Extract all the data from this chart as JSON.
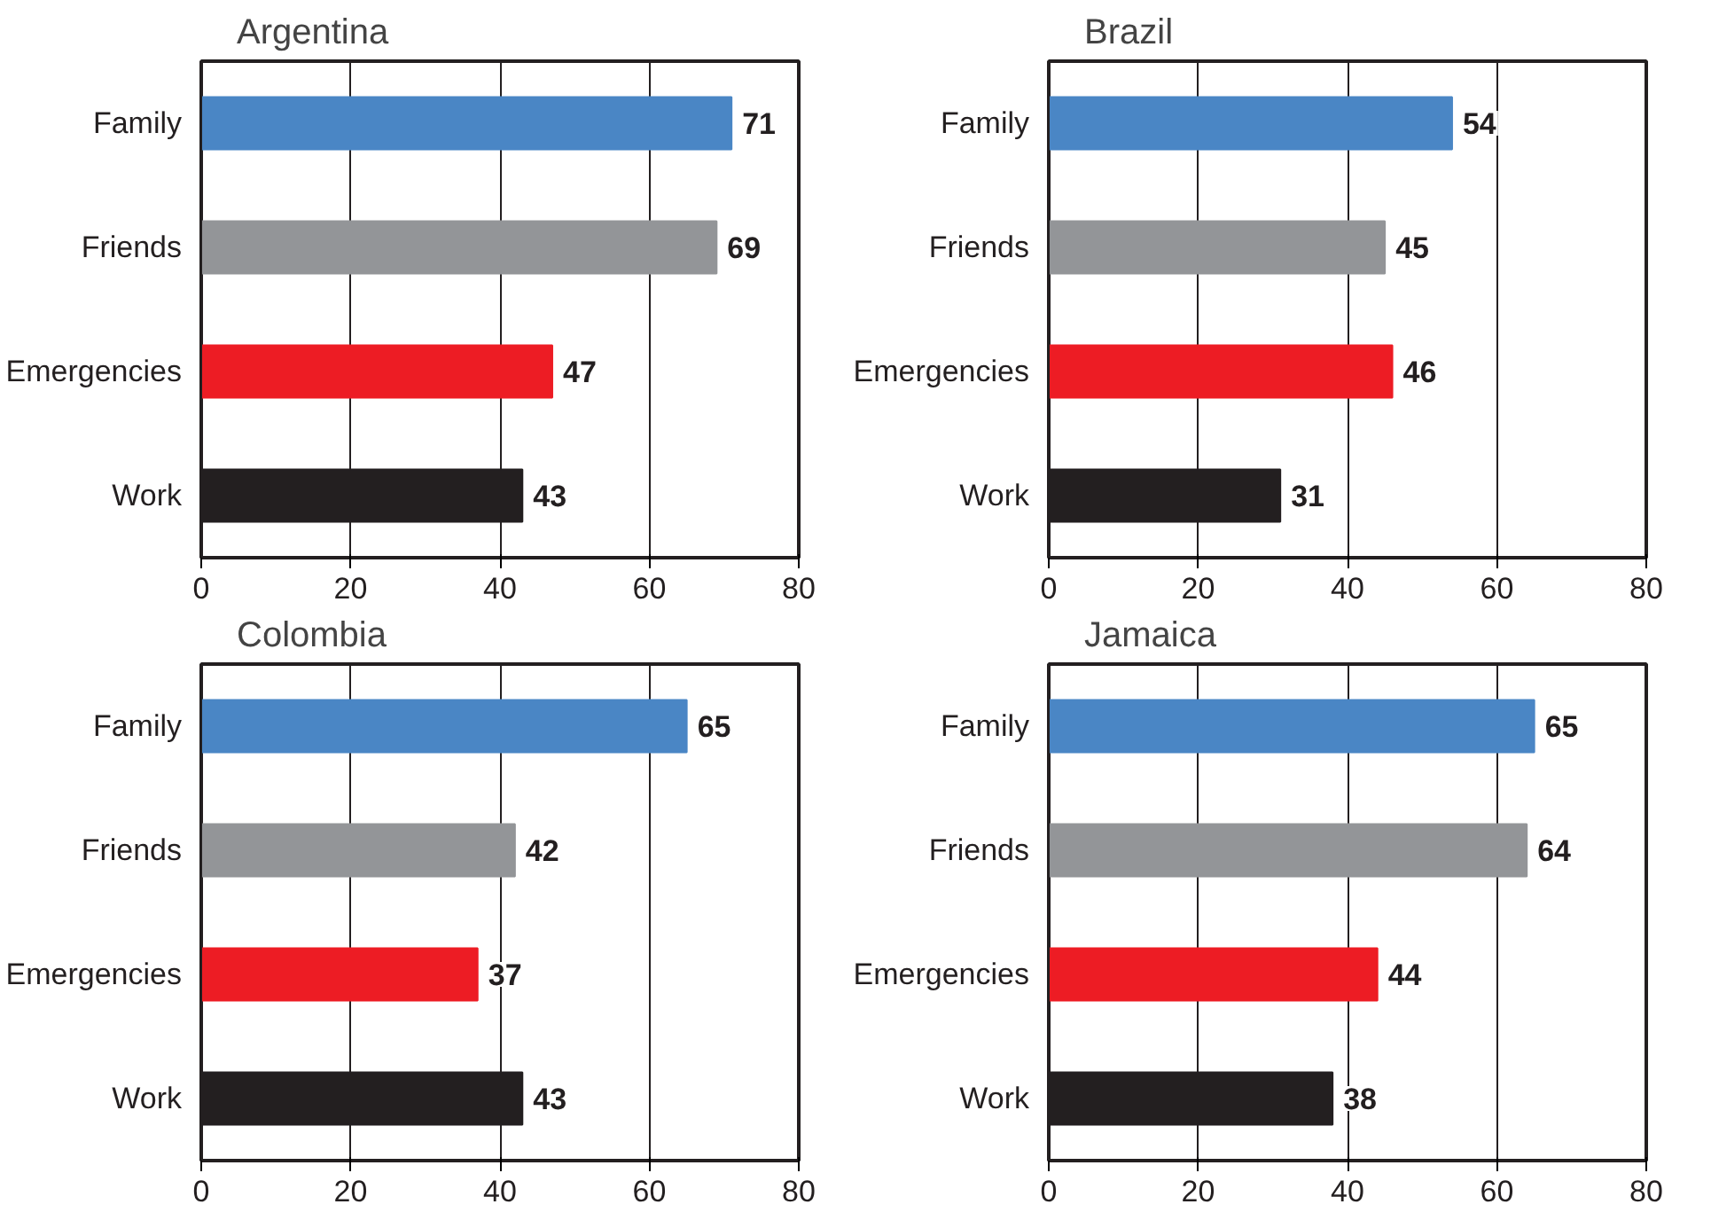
{
  "chart_data": [
    {
      "type": "bar",
      "orientation": "horizontal",
      "title": "Argentina",
      "categories": [
        "Family",
        "Friends",
        "Emergencies",
        "Work"
      ],
      "values": [
        71,
        69,
        47,
        43
      ],
      "colors": [
        "#4a86c5",
        "#939598",
        "#ed1c24",
        "#231f20"
      ],
      "xlim": [
        0,
        80
      ],
      "xticks": [
        0,
        20,
        40,
        60,
        80
      ],
      "grid": "x",
      "data_labels": true
    },
    {
      "type": "bar",
      "orientation": "horizontal",
      "title": "Brazil",
      "categories": [
        "Family",
        "Friends",
        "Emergencies",
        "Work"
      ],
      "values": [
        54,
        45,
        46,
        31
      ],
      "colors": [
        "#4a86c5",
        "#939598",
        "#ed1c24",
        "#231f20"
      ],
      "xlim": [
        0,
        80
      ],
      "xticks": [
        0,
        20,
        40,
        60,
        80
      ],
      "grid": "x",
      "data_labels": true
    },
    {
      "type": "bar",
      "orientation": "horizontal",
      "title": "Colombia",
      "categories": [
        "Family",
        "Friends",
        "Emergencies",
        "Work"
      ],
      "values": [
        65,
        42,
        37,
        43
      ],
      "colors": [
        "#4a86c5",
        "#939598",
        "#ed1c24",
        "#231f20"
      ],
      "xlim": [
        0,
        80
      ],
      "xticks": [
        0,
        20,
        40,
        60,
        80
      ],
      "grid": "x",
      "data_labels": true
    },
    {
      "type": "bar",
      "orientation": "horizontal",
      "title": "Jamaica",
      "categories": [
        "Family",
        "Friends",
        "Emergencies",
        "Work"
      ],
      "values": [
        65,
        64,
        44,
        38
      ],
      "colors": [
        "#4a86c5",
        "#939598",
        "#ed1c24",
        "#231f20"
      ],
      "xlim": [
        0,
        80
      ],
      "xticks": [
        0,
        20,
        40,
        60,
        80
      ],
      "grid": "x",
      "data_labels": true
    }
  ]
}
